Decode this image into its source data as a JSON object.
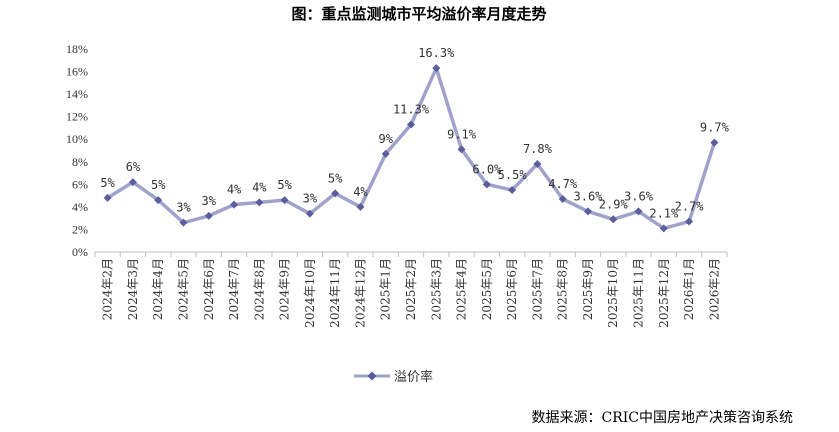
{
  "chart_data": {
    "type": "line",
    "title": "图：重点监测城市平均溢价率月度走势",
    "source": "数据来源：CRIC中国房地产决策咨询系统",
    "x": [
      "2024年2月",
      "2024年3月",
      "2024年4月",
      "2024年5月",
      "2024年6月",
      "2024年7月",
      "2024年8月",
      "2024年9月",
      "2024年10月",
      "2024年11月",
      "2024年12月",
      "2025年1月",
      "2025年2月",
      "2025年3月",
      "2025年4月",
      "2025年5月",
      "2025年6月",
      "2025年7月",
      "2025年8月",
      "2025年9月",
      "2025年10月",
      "2025年11月",
      "2025年12月",
      "2026年1月",
      "2026年2月"
    ],
    "series": [
      {
        "name": "溢价率",
        "color": "#9fa3cb",
        "marker_color": "#5a5e9c",
        "values": [
          4.8,
          6.2,
          4.6,
          2.6,
          3.2,
          4.2,
          4.4,
          4.6,
          3.4,
          5.2,
          4.0,
          8.7,
          11.3,
          16.3,
          9.1,
          6.0,
          5.5,
          7.8,
          4.7,
          3.6,
          2.9,
          3.6,
          2.1,
          2.7,
          9.7
        ],
        "labels": [
          "5%",
          "6%",
          "5%",
          "3%",
          "3%",
          "4%",
          "4%",
          "5%",
          "3%",
          "5%",
          "4%",
          "9%",
          "11.3%",
          "16.3%",
          "9.1%",
          "6.0%",
          "5.5%",
          "7.8%",
          "4.7%",
          "3.6%",
          "2.9%",
          "3.6%",
          "2.1%",
          "2.7%",
          "9.7%"
        ]
      }
    ],
    "yticks": [
      "0%",
      "2%",
      "4%",
      "6%",
      "8%",
      "10%",
      "12%",
      "14%",
      "16%",
      "18%"
    ],
    "ylim": [
      0,
      18
    ],
    "grid": false,
    "legend_position": "bottom"
  }
}
